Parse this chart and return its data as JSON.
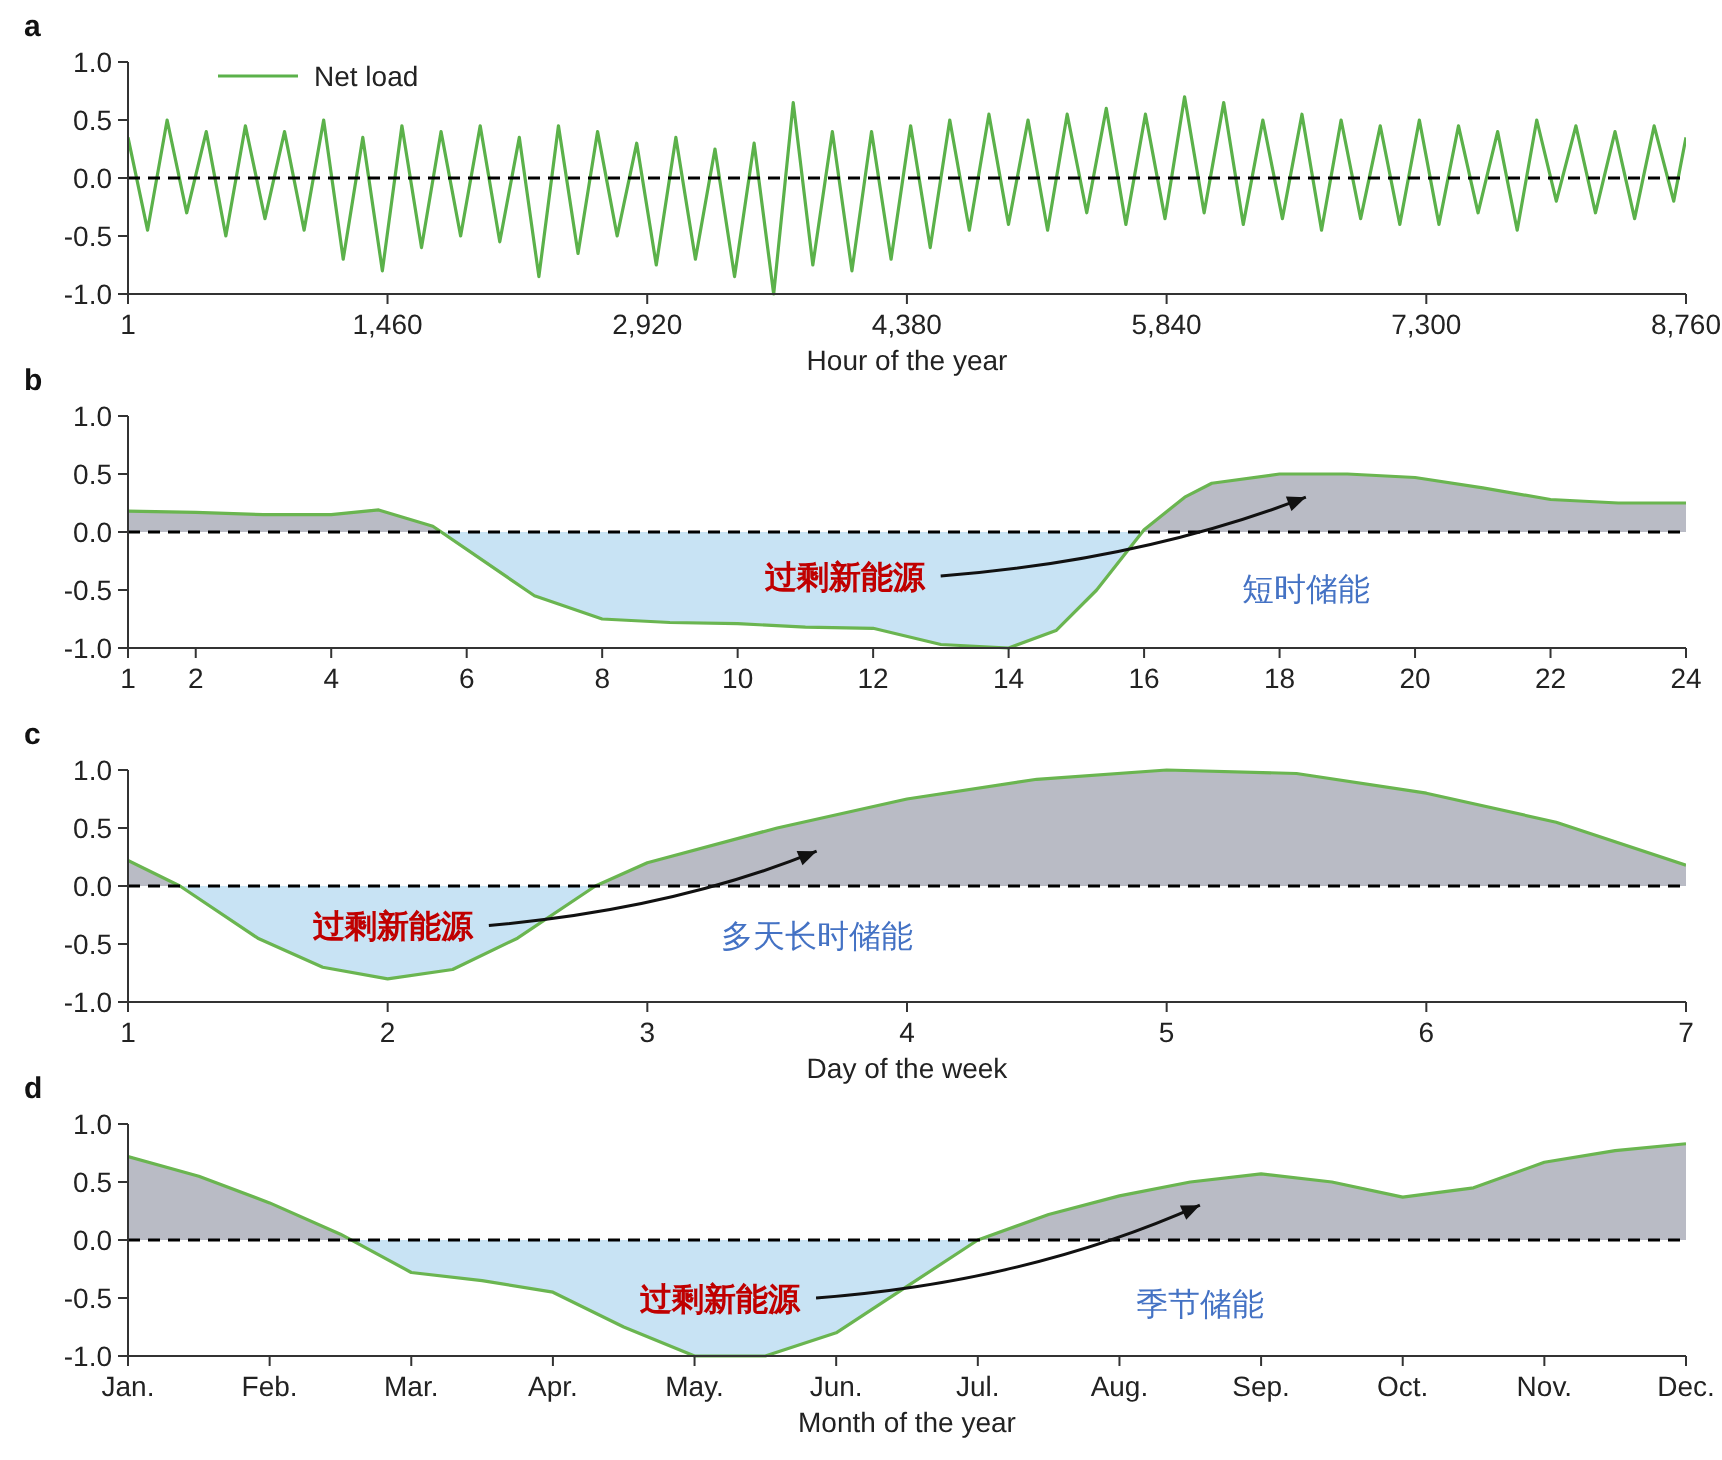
{
  "chart_data": [
    {
      "type": "line",
      "title": "a",
      "xlabel": "Hour of the year",
      "legend": "top left",
      "xlim": [
        1,
        8760
      ],
      "xticks": [
        1,
        {
          "value": 1460,
          "label": "1,460"
        },
        {
          "value": 2920,
          "label": "2,920"
        },
        {
          "value": 4380,
          "label": "4,380"
        },
        {
          "value": 5840,
          "label": "5,840"
        },
        {
          "value": 7300,
          "label": "7,300"
        },
        {
          "value": 8760,
          "label": "8,760"
        }
      ],
      "ylim": [
        -1,
        1
      ],
      "yticks": [
        {
          "value": 1,
          "label": "1.0"
        },
        {
          "value": 0.5,
          "label": "0.5"
        },
        {
          "value": 0,
          "label": "0.0"
        },
        {
          "value": -0.5,
          "label": "-0.5"
        },
        {
          "value": -1,
          "label": "-1.0"
        }
      ],
      "grid": false,
      "ref_lines": [
        {
          "axis": "y",
          "value": 0,
          "color": "#000000",
          "line_style": "dashed"
        }
      ],
      "x": [
        1,
        111,
        221,
        331,
        441,
        551,
        661,
        771,
        881,
        991,
        1101,
        1211,
        1321,
        1431,
        1541,
        1651,
        1761,
        1871,
        1981,
        2091,
        2201,
        2311,
        2421,
        2531,
        2641,
        2751,
        2861,
        2971,
        3081,
        3191,
        3301,
        3411,
        3521,
        3631,
        3741,
        3851,
        3961,
        4071,
        4181,
        4291,
        4401,
        4511,
        4621,
        4731,
        4841,
        4951,
        5061,
        5171,
        5281,
        5391,
        5501,
        5611,
        5721,
        5831,
        5941,
        6051,
        6161,
        6271,
        6381,
        6491,
        6601,
        6711,
        6821,
        6931,
        7041,
        7151,
        7261,
        7371,
        7481,
        7591,
        7701,
        7811,
        7921,
        8031,
        8141,
        8251,
        8361,
        8471,
        8581,
        8691,
        8760
      ],
      "series": [
        {
          "name": "Net load",
          "color": "#5bb14a",
          "values": [
            0.35,
            -0.45,
            0.5,
            -0.3,
            0.4,
            -0.5,
            0.45,
            -0.35,
            0.4,
            -0.45,
            0.5,
            -0.7,
            0.35,
            -0.8,
            0.45,
            -0.6,
            0.4,
            -0.5,
            0.45,
            -0.55,
            0.35,
            -0.85,
            0.45,
            -0.65,
            0.4,
            -0.5,
            0.3,
            -0.75,
            0.35,
            -0.7,
            0.25,
            -0.85,
            0.3,
            -1.0,
            0.65,
            -0.75,
            0.4,
            -0.8,
            0.4,
            -0.7,
            0.45,
            -0.6,
            0.5,
            -0.45,
            0.55,
            -0.4,
            0.5,
            -0.45,
            0.55,
            -0.3,
            0.6,
            -0.4,
            0.55,
            -0.35,
            0.7,
            -0.3,
            0.65,
            -0.4,
            0.5,
            -0.35,
            0.55,
            -0.45,
            0.5,
            -0.35,
            0.45,
            -0.4,
            0.5,
            -0.4,
            0.45,
            -0.3,
            0.4,
            -0.45,
            0.5,
            -0.2,
            0.45,
            -0.3,
            0.4,
            -0.35,
            0.45,
            -0.2,
            0.35
          ]
        }
      ]
    },
    {
      "type": "area",
      "title": "b",
      "colors": [
        "#b9bbc5",
        "#c8e3f4"
      ],
      "xlim": [
        1,
        24
      ],
      "xticks": [
        1,
        2,
        4,
        6,
        8,
        10,
        12,
        14,
        16,
        18,
        20,
        22,
        24
      ],
      "ylim": [
        -1,
        1
      ],
      "yticks": [
        {
          "value": 1,
          "label": "1.0"
        },
        {
          "value": 0.5,
          "label": "0.5"
        },
        {
          "value": 0,
          "label": "0.0"
        },
        {
          "value": -0.5,
          "label": "-0.5"
        },
        {
          "value": -1,
          "label": "-1.0"
        }
      ],
      "grid": false,
      "ref_lines": [
        {
          "axis": "y",
          "value": 0,
          "color": "#000000",
          "line_style": "dashed"
        }
      ],
      "annotations": [
        "过剩新能源",
        "短时储能"
      ],
      "x": [
        1,
        2,
        3,
        4,
        4.7,
        5.5,
        6,
        7,
        8,
        9,
        10,
        11,
        12,
        13,
        14,
        14.7,
        15.3,
        16,
        16.6,
        17,
        18,
        19,
        20,
        21,
        22,
        23,
        24
      ],
      "series": [
        {
          "color": "#6ab550",
          "values": [
            0.18,
            0.17,
            0.15,
            0.15,
            0.19,
            0.05,
            -0.15,
            -0.55,
            -0.75,
            -0.78,
            -0.79,
            -0.82,
            -0.83,
            -0.97,
            -1.0,
            -0.85,
            -0.5,
            0.02,
            0.3,
            0.42,
            0.5,
            0.5,
            0.47,
            0.38,
            0.28,
            0.25,
            0.25
          ]
        }
      ]
    },
    {
      "type": "area",
      "title": "c",
      "xlabel": "Day of the week",
      "colors": [
        "#b9bbc5",
        "#c8e3f4"
      ],
      "xlim": [
        1,
        7
      ],
      "xticks": [
        1,
        2,
        3,
        4,
        5,
        6,
        7
      ],
      "ylim": [
        -1,
        1
      ],
      "yticks": [
        {
          "value": 1,
          "label": "1.0"
        },
        {
          "value": 0.5,
          "label": "0.5"
        },
        {
          "value": 0,
          "label": "0.0"
        },
        {
          "value": -0.5,
          "label": "-0.5"
        },
        {
          "value": -1,
          "label": "-1.0"
        }
      ],
      "grid": false,
      "ref_lines": [
        {
          "axis": "y",
          "value": 0,
          "color": "#000000",
          "line_style": "dashed"
        }
      ],
      "annotations": [
        "过剩新能源",
        "多天长时储能"
      ],
      "x": [
        1,
        1.2,
        1.5,
        1.75,
        2,
        2.25,
        2.5,
        2.8,
        3,
        3.5,
        4,
        4.5,
        5,
        5.5,
        6,
        6.5,
        7
      ],
      "series": [
        {
          "color": "#6ab550",
          "values": [
            0.22,
            0.0,
            -0.45,
            -0.7,
            -0.8,
            -0.72,
            -0.45,
            0.0,
            0.2,
            0.5,
            0.75,
            0.92,
            1.0,
            0.97,
            0.8,
            0.55,
            0.18
          ]
        }
      ]
    },
    {
      "type": "area",
      "title": "d",
      "xlabel": "Month of the year",
      "colors": [
        "#b9bbc5",
        "#c8e3f4"
      ],
      "categories": [
        "Jan.",
        null,
        "Feb.",
        null,
        "Mar.",
        null,
        "Apr.",
        null,
        "May.",
        null,
        "Jun.",
        null,
        "Jul.",
        null,
        "Aug.",
        null,
        "Sep.",
        null,
        "Oct.",
        null,
        "Nov.",
        null,
        "Dec."
      ],
      "ylim": [
        -1,
        1
      ],
      "yticks": [
        {
          "value": 1,
          "label": "1.0"
        },
        {
          "value": 0.5,
          "label": "0.5"
        },
        {
          "value": 0,
          "label": "0.0"
        },
        {
          "value": -0.5,
          "label": "-0.5"
        },
        {
          "value": -1,
          "label": "-1.0"
        }
      ],
      "grid": false,
      "ref_lines": [
        {
          "axis": "y",
          "value": 0,
          "color": "#000000",
          "line_style": "dashed"
        }
      ],
      "annotations": [
        "过剩新能源",
        "季节储能"
      ],
      "series": [
        {
          "color": "#6ab550",
          "values": [
            0.72,
            0.55,
            0.32,
            0.05,
            -0.28,
            -0.35,
            -0.45,
            -0.75,
            -1.0,
            -1.0,
            -0.8,
            -0.4,
            0.0,
            0.22,
            0.38,
            0.5,
            0.57,
            0.5,
            0.37,
            0.45,
            0.67,
            0.77,
            0.83
          ]
        }
      ]
    }
  ]
}
